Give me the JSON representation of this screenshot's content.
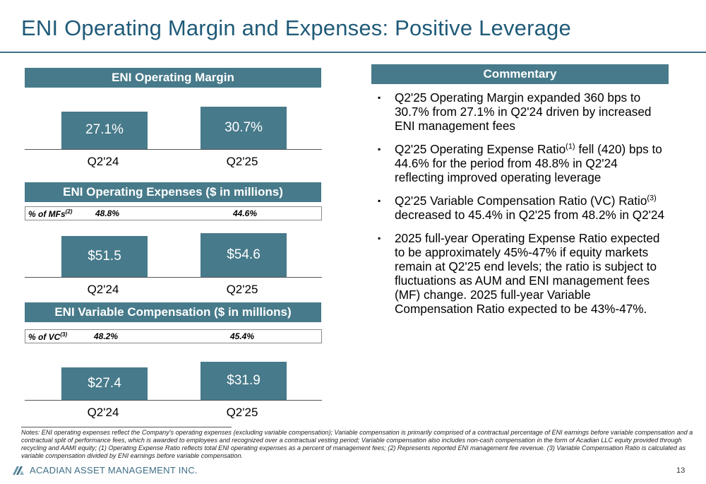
{
  "title": "ENI Operating Margin and Expenses: Positive Leverage",
  "margin_section": {
    "header": "ENI Operating Margin",
    "bars": [
      {
        "category": "Q2'24",
        "label": "27.1%",
        "value": 27.1
      },
      {
        "category": "Q2'25",
        "label": "30.7%",
        "value": 30.7
      }
    ]
  },
  "expenses_section": {
    "header": "ENI Operating Expenses ($ in millions)",
    "ratio_label": "% of MFs",
    "ratio_sup": "(2)",
    "ratios": [
      "48.8%",
      "44.6%"
    ],
    "bars": [
      {
        "category": "Q2'24",
        "label": "$51.5",
        "value": 51.5
      },
      {
        "category": "Q2'25",
        "label": "$54.6",
        "value": 54.6
      }
    ]
  },
  "vc_section": {
    "header": "ENI Variable Compensation ($ in millions)",
    "ratio_label": "% of VC",
    "ratio_sup": "(3)",
    "ratios": [
      "48.2%",
      "45.4%"
    ],
    "bars": [
      {
        "category": "Q2'24",
        "label": "$27.4",
        "value": 27.4
      },
      {
        "category": "Q2'25",
        "label": "$31.9",
        "value": 31.9
      }
    ]
  },
  "commentary": {
    "header": "Commentary",
    "bullet_mark": "▪",
    "b1": "Q2'25 Operating Margin expanded 360 bps to 30.7% from 27.1% in Q2'24 driven by increased ENI management fees",
    "b2_pre": "Q2'25 Operating Expense Ratio",
    "b2_sup": "(1)",
    "b2_post": " fell (420) bps to 44.6% for the period from 48.8% in Q2'24 reflecting improved operating leverage",
    "b3_pre": "Q2'25 Variable Compensation Ratio (VC) Ratio",
    "b3_sup": "(3)",
    "b3_post": " decreased to 45.4% in Q2'25 from 48.2% in Q2'24",
    "b4": "2025 full-year Operating Expense Ratio expected to be approximately 45%-47% if equity markets remain at Q2'25 end levels; the ratio is subject to fluctuations as AUM and ENI management fees (MF) change. 2025 full-year Variable Compensation Ratio expected to be 43%-47%."
  },
  "notes": "Notes: ENI operating expenses reflect the Company's operating expenses (excluding variable compensation); Variable compensation is primarily comprised of a contractual percentage of ENI earnings before variable compensation and a contractual split of performance fees, which is awarded to employees and recognized over a contractual vesting period; Variable compensation also includes non-cash compensation in the form of Acadian LLC equity provided through recycling and AAMI equity; (1) Operating Expense Ratio reflects total ENI operating expenses as a percent of management fees; (2) Represents reported ENI management fee revenue. (3) Variable Compensation Ratio is calculated as variable compensation divided by ENI earnings before variable compensation.",
  "logo_text": "ACADIAN ASSET MANAGEMENT INC.",
  "page_number": "13",
  "colors": {
    "accent": "#477a8a",
    "title": "#1f5a78"
  },
  "chart_data": [
    {
      "type": "bar",
      "title": "ENI Operating Margin",
      "categories": [
        "Q2'24",
        "Q2'25"
      ],
      "values": [
        27.1,
        30.7
      ]
    },
    {
      "type": "bar",
      "title": "ENI Operating Expenses ($ in millions)",
      "categories": [
        "Q2'24",
        "Q2'25"
      ],
      "values": [
        51.5,
        54.6
      ]
    },
    {
      "type": "bar",
      "title": "ENI Variable Compensation ($ in millions)",
      "categories": [
        "Q2'24",
        "Q2'25"
      ],
      "values": [
        27.4,
        31.9
      ]
    }
  ]
}
